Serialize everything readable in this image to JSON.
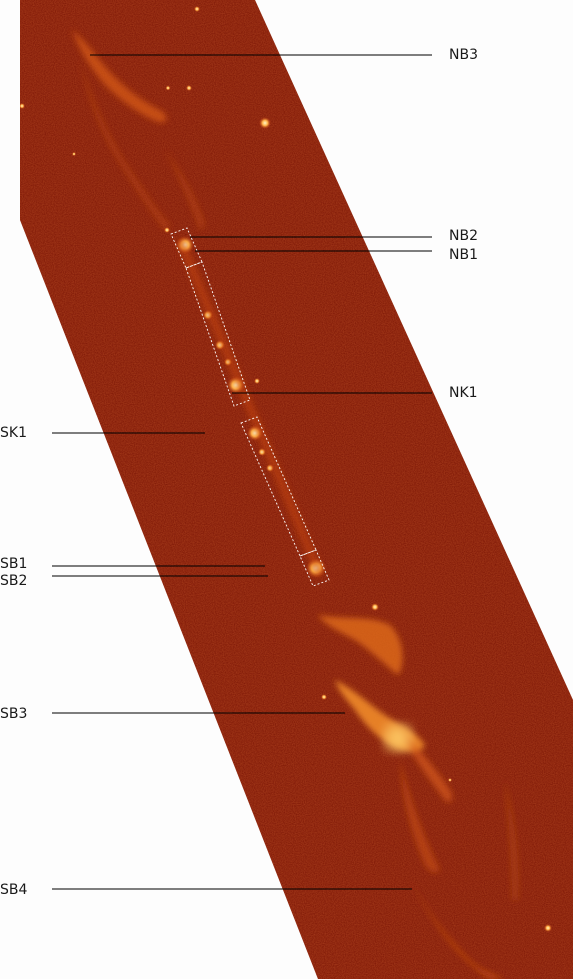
{
  "colors": {
    "background": "#fdfdfd",
    "sky": "#7a1304",
    "emission": "#e8731c",
    "knot": "#ffe08a",
    "line": "#000000",
    "slit": "#ffffff"
  },
  "labels": {
    "nb3": "NB3",
    "nb2": "NB2",
    "nb1": "NB1",
    "nk1": "NK1",
    "sk1": "SK1",
    "sb1": "SB1",
    "sb2": "SB2",
    "sb3": "SB3",
    "sb4": "SB4"
  }
}
